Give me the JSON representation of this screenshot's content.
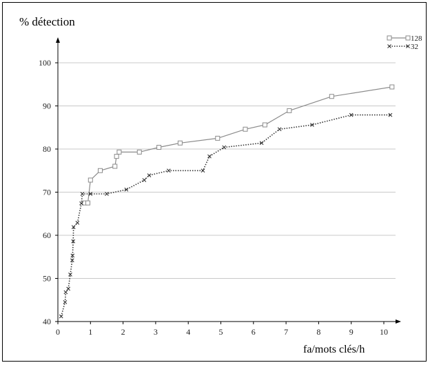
{
  "chart_data": {
    "type": "line",
    "title": "",
    "ylabel": "% détection",
    "xlabel": "fa/mots clés/h",
    "xlim": [
      0,
      10.5
    ],
    "ylim": [
      40,
      106
    ],
    "x_ticks": [
      0,
      1,
      2,
      3,
      4,
      5,
      6,
      7,
      8,
      9,
      10
    ],
    "y_ticks": [
      40,
      50,
      60,
      70,
      80,
      90,
      100
    ],
    "grid": "horizontal",
    "legend_position": "top-right",
    "series": [
      {
        "name": "128",
        "color": "#8a8a8a",
        "line_style": "solid",
        "marker": "square",
        "points": [
          [
            0.82,
            67.5
          ],
          [
            0.92,
            67.5
          ],
          [
            1.0,
            72.8
          ],
          [
            1.3,
            75.0
          ],
          [
            1.75,
            76.0
          ],
          [
            1.8,
            78.3
          ],
          [
            1.88,
            79.3
          ],
          [
            2.5,
            79.3
          ],
          [
            3.1,
            80.4
          ],
          [
            3.75,
            81.4
          ],
          [
            4.9,
            82.5
          ],
          [
            5.75,
            84.6
          ],
          [
            6.35,
            85.6
          ],
          [
            7.1,
            88.9
          ],
          [
            8.4,
            92.2
          ],
          [
            10.25,
            94.4
          ]
        ]
      },
      {
        "name": "32",
        "color": "#333333",
        "line_style": "dotted",
        "marker": "x",
        "points": [
          [
            0.1,
            41.2
          ],
          [
            0.22,
            44.5
          ],
          [
            0.24,
            46.8
          ],
          [
            0.32,
            47.6
          ],
          [
            0.38,
            50.9
          ],
          [
            0.44,
            54.2
          ],
          [
            0.45,
            55.3
          ],
          [
            0.47,
            58.6
          ],
          [
            0.48,
            61.9
          ],
          [
            0.6,
            62.9
          ],
          [
            0.72,
            67.4
          ],
          [
            0.75,
            69.6
          ],
          [
            1.0,
            69.6
          ],
          [
            1.5,
            69.6
          ],
          [
            2.1,
            70.6
          ],
          [
            2.65,
            72.8
          ],
          [
            2.8,
            73.9
          ],
          [
            3.4,
            75.0
          ],
          [
            4.45,
            75.0
          ],
          [
            4.65,
            78.3
          ],
          [
            5.1,
            80.4
          ],
          [
            6.25,
            81.4
          ],
          [
            6.8,
            84.6
          ],
          [
            7.8,
            85.6
          ],
          [
            9.0,
            87.9
          ],
          [
            10.2,
            87.9
          ]
        ]
      }
    ]
  }
}
